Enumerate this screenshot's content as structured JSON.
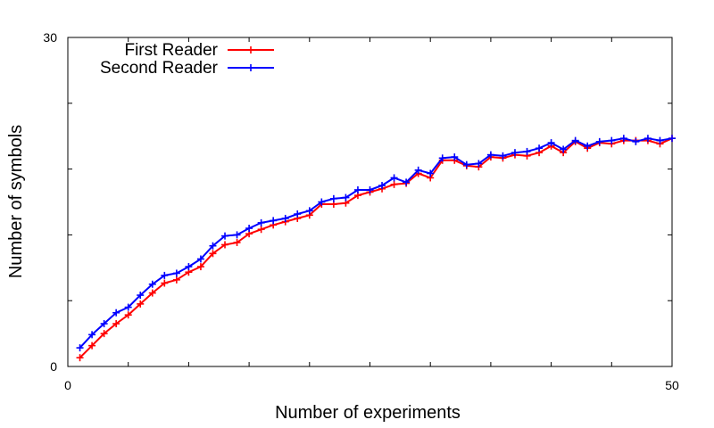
{
  "chart_data": {
    "type": "line",
    "xlabel": "Number of experiments",
    "ylabel": "Number of symbols",
    "xlim": [
      0,
      50
    ],
    "ylim": [
      0,
      30
    ],
    "x_tick_labels": [
      "0",
      "50"
    ],
    "y_tick_labels": [
      "0",
      "30"
    ],
    "legend_position": "top-left",
    "grid": false,
    "x": [
      1,
      2,
      3,
      4,
      5,
      6,
      7,
      8,
      9,
      10,
      11,
      12,
      13,
      14,
      15,
      16,
      17,
      18,
      19,
      20,
      21,
      22,
      23,
      24,
      25,
      26,
      27,
      28,
      29,
      30,
      31,
      32,
      33,
      34,
      35,
      36,
      37,
      38,
      39,
      40,
      41,
      42,
      43,
      44,
      45,
      46,
      47,
      48,
      49,
      50
    ],
    "series": [
      {
        "name": "First Reader",
        "color": "#ff0000",
        "values": [
          0.8,
          1.9,
          3.0,
          3.9,
          4.7,
          5.7,
          6.7,
          7.6,
          7.9,
          8.6,
          9.1,
          10.3,
          11.1,
          11.3,
          12.1,
          12.5,
          12.9,
          13.2,
          13.5,
          13.8,
          14.8,
          14.8,
          14.9,
          15.6,
          15.9,
          16.2,
          16.6,
          16.7,
          17.6,
          17.2,
          18.8,
          18.8,
          18.3,
          18.2,
          19.1,
          19.0,
          19.3,
          19.2,
          19.5,
          20.1,
          19.5,
          20.5,
          19.9,
          20.4,
          20.3,
          20.6,
          20.6,
          20.6,
          20.3,
          20.8
        ]
      },
      {
        "name": "Second Reader",
        "color": "#0000ff",
        "values": [
          1.7,
          2.9,
          3.9,
          4.9,
          5.4,
          6.5,
          7.5,
          8.3,
          8.5,
          9.1,
          9.8,
          11.0,
          11.9,
          12.0,
          12.6,
          13.1,
          13.3,
          13.5,
          13.9,
          14.2,
          15.0,
          15.3,
          15.4,
          16.1,
          16.1,
          16.5,
          17.2,
          16.8,
          17.9,
          17.6,
          19.0,
          19.1,
          18.4,
          18.5,
          19.3,
          19.2,
          19.5,
          19.6,
          19.9,
          20.4,
          19.8,
          20.6,
          20.1,
          20.5,
          20.6,
          20.8,
          20.5,
          20.8,
          20.6,
          20.8
        ]
      }
    ]
  }
}
